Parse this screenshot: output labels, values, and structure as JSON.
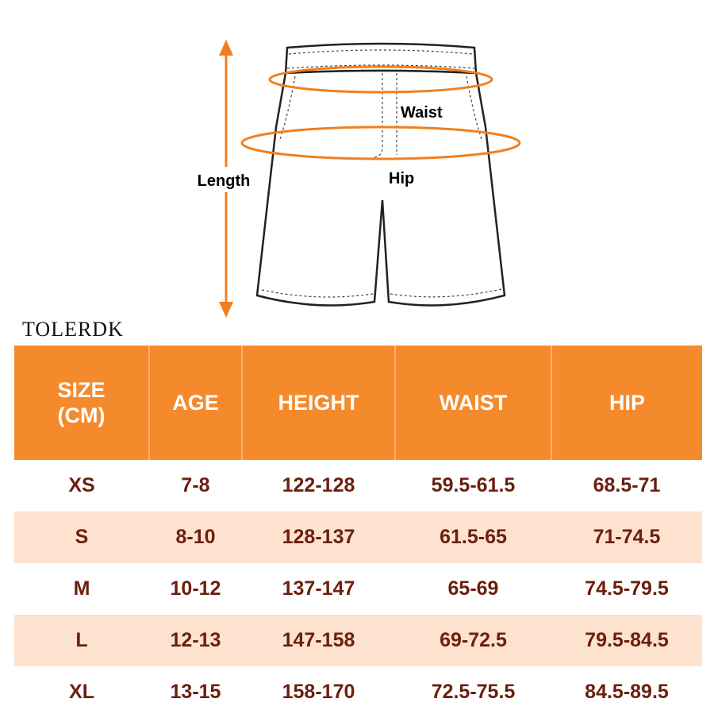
{
  "diagram": {
    "labels": {
      "length": "Length",
      "waist": "Waist",
      "hip": "Hip"
    }
  },
  "brand": "TOLERDK",
  "table": {
    "header": [
      "SIZE\n(CM)",
      "AGE",
      "HEIGHT",
      "WAIST",
      "HIP"
    ],
    "rows": [
      [
        "XS",
        "7-8",
        "122-128",
        "59.5-61.5",
        "68.5-71"
      ],
      [
        "S",
        "8-10",
        "128-137",
        "61.5-65",
        "71-74.5"
      ],
      [
        "M",
        "10-12",
        "137-147",
        "65-69",
        "74.5-79.5"
      ],
      [
        "L",
        "12-13",
        "147-158",
        "69-72.5",
        "79.5-84.5"
      ],
      [
        "XL",
        "13-15",
        "158-170",
        "72.5-75.5",
        "84.5-89.5"
      ]
    ]
  }
}
